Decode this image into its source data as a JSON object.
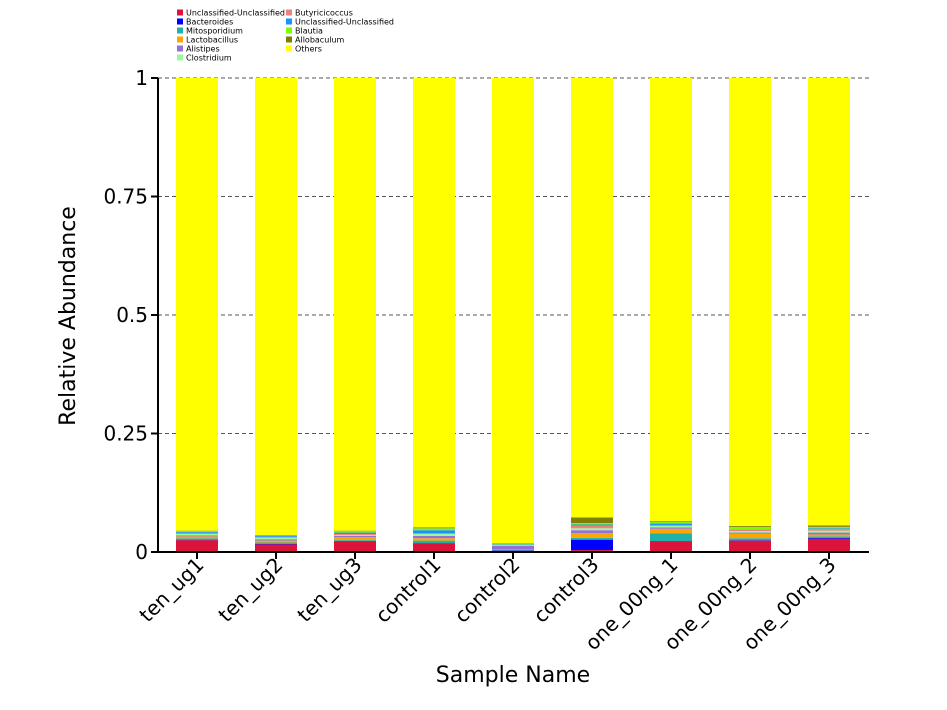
{
  "chart_data": {
    "type": "bar",
    "stacked": true,
    "xlabel": "Sample Name",
    "ylabel": "Relative Abundance",
    "ylim": [
      0,
      1
    ],
    "yticks": [
      {
        "value": 0,
        "label": "0"
      },
      {
        "value": 0.25,
        "label": "0.25"
      },
      {
        "value": 0.5,
        "label": "0.5"
      },
      {
        "value": 0.75,
        "label": "0.75"
      },
      {
        "value": 1,
        "label": "1"
      }
    ],
    "grid": "horizontal-dashed",
    "legend_position": "top-left",
    "categories": [
      "ten_ug1",
      "ten_ug2",
      "ten_ug3",
      "control1",
      "control2",
      "control3",
      "one_00ng_1",
      "one_00ng_2",
      "one_00ng_3"
    ],
    "series": [
      {
        "name": "Unclassified-Unclassified",
        "color": "#dc143c",
        "values": [
          0.025,
          0.016,
          0.022,
          0.017,
          0.002,
          0.004,
          0.022,
          0.024,
          0.028
        ]
      },
      {
        "name": "Bacteroides",
        "color": "#0000ff",
        "values": [
          0.001,
          0.001,
          0.001,
          0.001,
          0.001,
          0.022,
          0.001,
          0.001,
          0.002
        ]
      },
      {
        "name": "Mitosporidium",
        "color": "#20b2aa",
        "values": [
          0.003,
          0.003,
          0.002,
          0.006,
          0.001,
          0.004,
          0.016,
          0.004,
          0.003
        ]
      },
      {
        "name": "Lactobacillus",
        "color": "#ffa500",
        "values": [
          0.004,
          0.004,
          0.006,
          0.005,
          0.001,
          0.01,
          0.01,
          0.01,
          0.004
        ]
      },
      {
        "name": "Alistipes",
        "color": "#9370db",
        "values": [
          0.002,
          0.003,
          0.003,
          0.005,
          0.008,
          0.006,
          0.003,
          0.002,
          0.004
        ]
      },
      {
        "name": "Clostridium",
        "color": "#98fb98",
        "values": [
          0.003,
          0.003,
          0.002,
          0.004,
          0.001,
          0.004,
          0.003,
          0.003,
          0.004
        ]
      },
      {
        "name": "Butyricicoccus",
        "color": "#f08080",
        "values": [
          0.002,
          0.002,
          0.002,
          0.002,
          0.001,
          0.006,
          0.002,
          0.003,
          0.003
        ]
      },
      {
        "name": "Unclassified-Unclassified",
        "color": "#1e90ff",
        "values": [
          0.002,
          0.002,
          0.003,
          0.006,
          0.001,
          0.002,
          0.003,
          0.001,
          0.002
        ]
      },
      {
        "name": "Blautia",
        "color": "#7cfc00",
        "values": [
          0.002,
          0.001,
          0.003,
          0.004,
          0.001,
          0.003,
          0.003,
          0.005,
          0.003
        ]
      },
      {
        "name": "Allobaculum",
        "color": "#808000",
        "values": [
          0.001,
          0.001,
          0.001,
          0.002,
          0.001,
          0.012,
          0.002,
          0.002,
          0.003
        ]
      },
      {
        "name": "Others",
        "color": "#ffff00",
        "values": [
          0.955,
          0.964,
          0.955,
          0.948,
          0.982,
          0.927,
          0.935,
          0.945,
          0.944
        ]
      }
    ]
  }
}
